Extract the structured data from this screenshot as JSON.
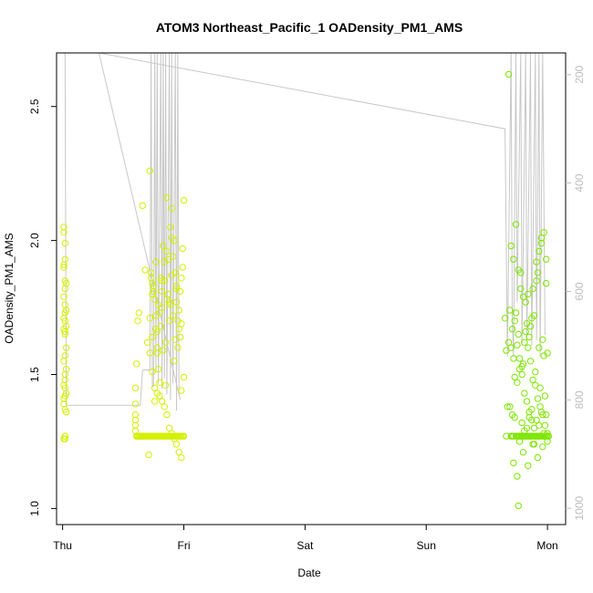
{
  "chart_data": {
    "type": "scatter",
    "title": "ATOM3 Northeast_Pacific_1 OADensity_PM1_AMS",
    "xlabel": "Date",
    "ylabel": "OADensity_PM1_AMS",
    "y2label": "",
    "xlim": [
      -0.05,
      4.15
    ],
    "ylim": [
      0.94,
      2.7
    ],
    "y2lim": [
      1030,
      160
    ],
    "x_ticks": [
      {
        "value": 0,
        "label": "Thu"
      },
      {
        "value": 1,
        "label": "Fri"
      },
      {
        "value": 2,
        "label": "Sat"
      },
      {
        "value": 3,
        "label": "Sun"
      },
      {
        "value": 4,
        "label": "Mon"
      }
    ],
    "y_ticks": [
      1.0,
      1.5,
      2.0,
      2.5
    ],
    "y2_ticks": [
      200,
      400,
      600,
      800,
      1000
    ],
    "grid": false,
    "legend": "none",
    "colors": {
      "points_early": "#d4f000",
      "points_late": "#7ee600",
      "pressure_line": "#c8c8c8",
      "axis": "#000000",
      "right_axis": "#bdbdbd"
    },
    "pressure_line": [
      [
        0.02,
        160
      ],
      [
        0.03,
        810
      ],
      [
        0.25,
        810
      ],
      [
        0.32,
        810
      ],
      [
        0.64,
        810
      ],
      [
        0.66,
        745
      ],
      [
        0.72,
        745
      ],
      [
        0.73,
        160
      ],
      [
        0.74,
        775
      ],
      [
        0.75,
        775
      ],
      [
        0.76,
        160
      ],
      [
        0.77,
        750
      ],
      [
        0.78,
        160
      ],
      [
        0.79,
        770
      ],
      [
        0.81,
        160
      ],
      [
        0.82,
        780
      ],
      [
        0.83,
        160
      ],
      [
        0.84,
        760
      ],
      [
        0.85,
        160
      ],
      [
        0.86,
        790
      ],
      [
        0.88,
        160
      ],
      [
        0.89,
        800
      ],
      [
        0.9,
        160
      ],
      [
        0.91,
        770
      ],
      [
        0.93,
        160
      ],
      [
        0.94,
        820
      ],
      [
        0.95,
        160
      ],
      [
        0.96,
        790
      ],
      [
        0.97,
        800
      ],
      [
        0.3,
        160
      ],
      [
        3.65,
        300
      ],
      [
        3.67,
        720
      ],
      [
        3.7,
        160
      ],
      [
        3.71,
        650
      ],
      [
        3.72,
        720
      ],
      [
        3.74,
        160
      ],
      [
        3.75,
        620
      ],
      [
        3.78,
        160
      ],
      [
        3.79,
        700
      ],
      [
        3.82,
        160
      ],
      [
        3.83,
        690
      ],
      [
        3.86,
        160
      ],
      [
        3.87,
        700
      ],
      [
        3.9,
        160
      ],
      [
        3.91,
        690
      ],
      [
        3.93,
        160
      ],
      [
        3.94,
        720
      ],
      [
        3.96,
        160
      ],
      [
        3.97,
        410
      ],
      [
        3.98,
        680
      ]
    ],
    "series": [
      {
        "x": [
          0.01,
          0.01,
          0.02,
          0.02,
          0.01,
          0.02,
          0.03,
          0.01,
          0.02,
          0.03,
          0.02,
          0.01,
          0.02,
          0.03,
          0.01,
          0.02,
          0.02,
          0.01,
          0.03,
          0.02,
          0.01,
          0.02,
          0.03,
          0.02,
          0.01,
          0.02,
          0.03,
          0.02,
          0.01,
          0.02,
          0.02,
          0.01,
          0.02,
          0.03,
          0.02,
          0.01,
          0.02
        ],
        "y": [
          2.05,
          2.03,
          1.99,
          1.93,
          1.91,
          1.85,
          1.84,
          1.79,
          1.76,
          1.74,
          1.73,
          1.71,
          1.7,
          1.68,
          1.67,
          1.66,
          1.57,
          1.55,
          1.52,
          1.48,
          1.46,
          1.45,
          1.43,
          1.42,
          1.41,
          1.37,
          1.36,
          1.27,
          1.26,
          1.27,
          1.26,
          1.9,
          1.82,
          1.6,
          1.5,
          1.39,
          1.65
        ]
      },
      {
        "x": [
          0.6,
          0.6,
          0.6,
          0.6,
          0.6,
          0.6,
          0.61,
          0.61,
          0.61,
          0.62,
          0.62,
          0.62,
          0.63,
          0.63,
          0.64,
          0.64,
          0.65,
          0.65,
          0.66,
          0.66,
          0.67,
          0.68,
          0.69,
          0.7,
          0.71,
          0.72,
          0.73,
          0.74,
          0.75,
          0.76,
          0.77,
          0.78,
          0.79,
          0.8,
          0.81,
          0.82,
          0.83,
          0.84,
          0.85,
          0.86,
          0.87,
          0.88,
          0.89,
          0.9,
          0.91,
          0.92,
          0.93,
          0.94,
          0.95,
          0.96,
          0.97,
          0.98,
          0.99,
          1.0,
          0.66,
          0.68,
          0.7,
          0.72,
          0.74,
          0.76,
          0.78,
          0.8,
          0.82,
          0.84,
          0.86,
          0.88,
          0.9,
          0.92,
          0.94,
          0.96,
          0.98
        ],
        "y": [
          1.39,
          1.35,
          1.33,
          1.31,
          1.29,
          1.45,
          1.54,
          1.27,
          1.27,
          1.27,
          1.7,
          1.27,
          1.73,
          1.27,
          1.27,
          1.27,
          1.27,
          1.27,
          1.27,
          1.27,
          1.27,
          1.27,
          1.27,
          1.27,
          1.27,
          1.27,
          1.27,
          1.27,
          1.27,
          1.27,
          1.27,
          1.27,
          1.27,
          1.27,
          1.27,
          1.27,
          1.27,
          1.27,
          1.27,
          1.27,
          1.27,
          1.27,
          1.27,
          1.27,
          1.27,
          1.27,
          1.27,
          1.27,
          1.27,
          1.27,
          1.27,
          1.27,
          1.27,
          1.27,
          2.13,
          1.89,
          1.62,
          1.58,
          1.51,
          1.45,
          1.43,
          1.42,
          1.4,
          1.38,
          1.35,
          1.3,
          1.28,
          1.26,
          1.24,
          1.21,
          1.19
        ]
      },
      {
        "x": [
          0.71,
          0.72,
          0.73,
          0.74,
          0.74,
          0.75,
          0.76,
          0.77,
          0.77,
          0.78,
          0.79,
          0.8,
          0.81,
          0.82,
          0.83,
          0.84,
          0.85,
          0.86,
          0.87,
          0.88,
          0.89,
          0.9,
          0.91,
          0.92,
          0.93,
          0.94,
          0.95,
          0.96,
          0.97,
          0.98,
          0.99,
          1.0,
          0.73,
          0.75,
          0.77,
          0.79,
          0.81,
          0.83,
          0.85,
          0.87,
          0.89,
          0.91,
          0.93,
          0.95,
          0.97,
          0.99,
          0.76,
          0.78,
          0.8,
          0.82,
          0.84,
          0.86,
          0.88,
          0.9,
          0.92,
          0.94,
          0.96,
          0.98,
          1.0,
          0.72,
          0.74,
          0.78,
          0.82,
          0.86,
          0.9,
          0.94,
          0.98
        ],
        "y": [
          1.2,
          2.26,
          1.88,
          1.84,
          1.8,
          1.83,
          1.78,
          1.72,
          1.67,
          1.6,
          1.52,
          1.47,
          1.86,
          1.75,
          1.98,
          1.85,
          1.62,
          1.78,
          1.8,
          1.7,
          2.05,
          2.01,
          1.94,
          2.0,
          1.88,
          1.82,
          1.7,
          1.67,
          1.64,
          1.86,
          1.9,
          2.15,
          1.86,
          1.81,
          1.92,
          1.76,
          1.68,
          1.59,
          1.46,
          1.93,
          1.76,
          1.72,
          1.63,
          1.6,
          1.81,
          1.97,
          1.4,
          1.66,
          1.73,
          1.85,
          1.92,
          1.96,
          1.77,
          1.87,
          1.55,
          1.83,
          1.74,
          1.69,
          1.49,
          1.71,
          1.64,
          1.58,
          1.81,
          2.16,
          2.12,
          1.77,
          1.44
        ]
      },
      {
        "x": [
          3.66,
          3.7,
          3.71,
          3.72,
          3.74,
          3.75,
          3.76,
          3.77,
          3.78,
          3.79,
          3.8,
          3.81,
          3.82,
          3.83,
          3.84,
          3.85,
          3.86,
          3.87,
          3.88,
          3.89,
          3.9,
          3.91,
          3.92,
          3.93,
          3.94,
          3.95,
          3.96,
          3.97,
          3.98,
          3.99,
          4.0,
          4.01,
          3.69,
          3.71,
          3.73,
          3.75,
          3.77,
          3.79,
          3.81,
          3.83,
          3.85,
          3.87,
          3.89,
          3.91,
          3.93,
          3.95,
          3.97,
          3.99,
          3.72,
          3.76,
          3.8,
          3.84,
          3.88,
          3.92,
          3.96,
          4.0
        ],
        "y": [
          1.27,
          1.27,
          1.27,
          1.27,
          1.27,
          1.27,
          1.27,
          1.27,
          1.27,
          1.27,
          1.27,
          1.27,
          1.27,
          1.27,
          1.27,
          1.27,
          1.27,
          1.27,
          1.27,
          1.27,
          1.27,
          1.27,
          1.27,
          1.27,
          1.27,
          1.27,
          1.27,
          1.27,
          1.27,
          1.27,
          1.27,
          1.27,
          1.38,
          1.35,
          1.34,
          1.12,
          1.25,
          1.32,
          1.29,
          1.3,
          1.34,
          1.37,
          1.24,
          1.33,
          1.31,
          1.36,
          1.28,
          1.35,
          1.17,
          1.01,
          1.21,
          1.16,
          1.24,
          1.19,
          1.23,
          1.25
        ]
      },
      {
        "x": [
          3.65,
          3.68,
          3.7,
          3.72,
          3.74,
          3.76,
          3.78,
          3.8,
          3.82,
          3.84,
          3.86,
          3.88,
          3.9,
          3.92,
          3.94,
          3.96,
          3.98,
          4.0,
          3.66,
          3.69,
          3.71,
          3.73,
          3.75,
          3.77,
          3.79,
          3.81,
          3.83,
          3.85,
          3.87,
          3.89,
          3.91,
          3.93,
          3.95,
          3.97,
          3.99,
          3.67,
          3.7,
          3.74,
          3.78,
          3.82,
          3.86,
          3.9,
          3.94,
          3.98,
          3.68,
          3.72,
          3.76,
          3.8,
          3.84,
          3.88,
          3.92,
          3.96,
          4.0,
          3.75,
          3.79,
          3.83,
          3.87,
          3.91,
          3.95,
          3.99,
          3.73,
          3.77,
          3.81,
          3.85,
          3.89,
          3.93,
          3.97
        ],
        "y": [
          1.71,
          2.62,
          1.98,
          1.93,
          2.06,
          1.89,
          1.82,
          1.79,
          1.66,
          1.6,
          1.55,
          1.48,
          1.46,
          1.41,
          1.38,
          1.35,
          1.31,
          1.28,
          1.59,
          1.74,
          1.67,
          1.7,
          1.61,
          1.56,
          1.5,
          1.43,
          1.4,
          1.36,
          1.33,
          1.3,
          1.92,
          1.96,
          2.01,
          2.03,
          1.84,
          1.38,
          1.6,
          1.73,
          1.88,
          1.77,
          1.68,
          1.51,
          1.45,
          1.42,
          1.62,
          1.56,
          1.65,
          1.54,
          1.8,
          1.82,
          1.88,
          1.63,
          1.58,
          1.47,
          1.53,
          1.69,
          1.71,
          1.85,
          1.99,
          1.93,
          1.49,
          1.52,
          1.62,
          1.64,
          1.72,
          1.6,
          1.57
        ]
      }
    ]
  }
}
